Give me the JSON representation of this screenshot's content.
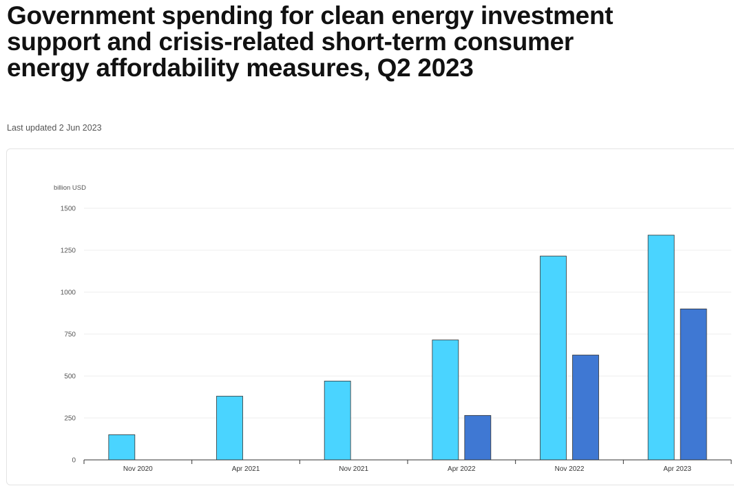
{
  "page": {
    "title": "Government spending for clean energy investment support and crisis-related short-term consumer energy affordability measures, Q2 2023",
    "last_updated": "Last updated 2 Jun 2023"
  },
  "colors": {
    "series_1": "#4ad4ff",
    "series_2": "#3f78d3",
    "grid": "#ececec",
    "axis": "#333333"
  },
  "chart_data": {
    "type": "bar",
    "title": "Government spending for clean energy investment support and crisis-related short-term consumer energy affordability measures, Q2 2023",
    "ylabel": "billion USD",
    "xlabel": "",
    "ylim": [
      0,
      1500
    ],
    "yticks": [
      0,
      250,
      500,
      750,
      1000,
      1250,
      1500
    ],
    "grid": true,
    "legend": "none",
    "categories": [
      "Nov 2020",
      "Apr 2021",
      "Nov 2021",
      "Apr 2022",
      "Nov 2022",
      "Apr 2023"
    ],
    "series": [
      {
        "values": [
          150,
          380,
          470,
          715,
          1215,
          1340
        ]
      },
      {
        "values": [
          null,
          null,
          null,
          265,
          625,
          900
        ]
      }
    ]
  }
}
